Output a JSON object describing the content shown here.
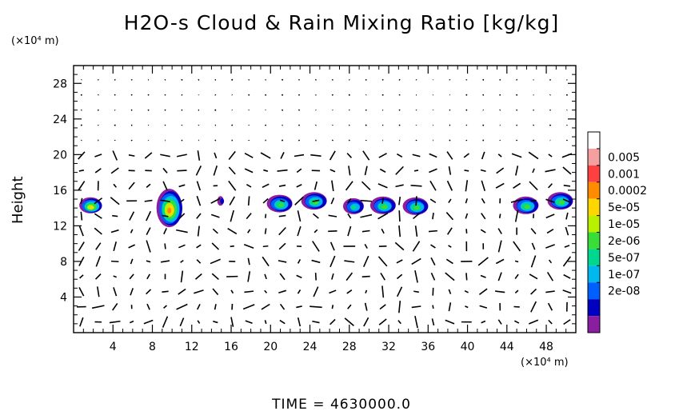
{
  "chart_data": {
    "type": "heatmap",
    "title": "H2O-s Cloud & Rain Mixing Ratio [kg/kg]",
    "ylabel": "Height",
    "x_unit": "(×10⁴ m)",
    "y_unit": "(×10⁴ m)",
    "xlim": [
      0,
      51
    ],
    "ylim": [
      0,
      30
    ],
    "x_ticks": [
      "4",
      "8",
      "12",
      "16",
      "20",
      "24",
      "28",
      "32",
      "36",
      "40",
      "44",
      "48"
    ],
    "y_ticks": [
      "4",
      "8",
      "12",
      "16",
      "20",
      "24",
      "28"
    ],
    "colorbar": {
      "labels": [
        "0.005",
        "0.001",
        "0.0002",
        "5e-05",
        "1e-05",
        "2e-06",
        "5e-07",
        "1e-07",
        "2e-08"
      ],
      "colors": [
        "#ffffff",
        "#f5a0a0",
        "#ff4040",
        "#ff8c00",
        "#ffd700",
        "#b8f000",
        "#38dd38",
        "#00d890",
        "#00b8f0",
        "#0060ff",
        "#0000c0",
        "#8a1ea0"
      ]
    },
    "cloud_cells": [
      {
        "x": 1.8,
        "y": 14.3,
        "max_mixing_ratio": "5e-05"
      },
      {
        "x": 9.8,
        "y": 14.0,
        "max_mixing_ratio": "0.0002"
      },
      {
        "x": 15.0,
        "y": 14.8,
        "max_mixing_ratio": "2e-08"
      },
      {
        "x": 21.0,
        "y": 14.5,
        "max_mixing_ratio": "2e-06"
      },
      {
        "x": 24.5,
        "y": 14.8,
        "max_mixing_ratio": "2e-06"
      },
      {
        "x": 28.5,
        "y": 14.2,
        "max_mixing_ratio": "5e-07"
      },
      {
        "x": 31.5,
        "y": 14.3,
        "max_mixing_ratio": "2e-06"
      },
      {
        "x": 34.8,
        "y": 14.2,
        "max_mixing_ratio": "2e-06"
      },
      {
        "x": 46.0,
        "y": 14.3,
        "max_mixing_ratio": "2e-06"
      },
      {
        "x": 49.5,
        "y": 14.8,
        "max_mixing_ratio": "2e-06"
      }
    ],
    "vectors": "wind vector field overlay",
    "time_label": "TIME",
    "time_value": "4630000.0"
  }
}
